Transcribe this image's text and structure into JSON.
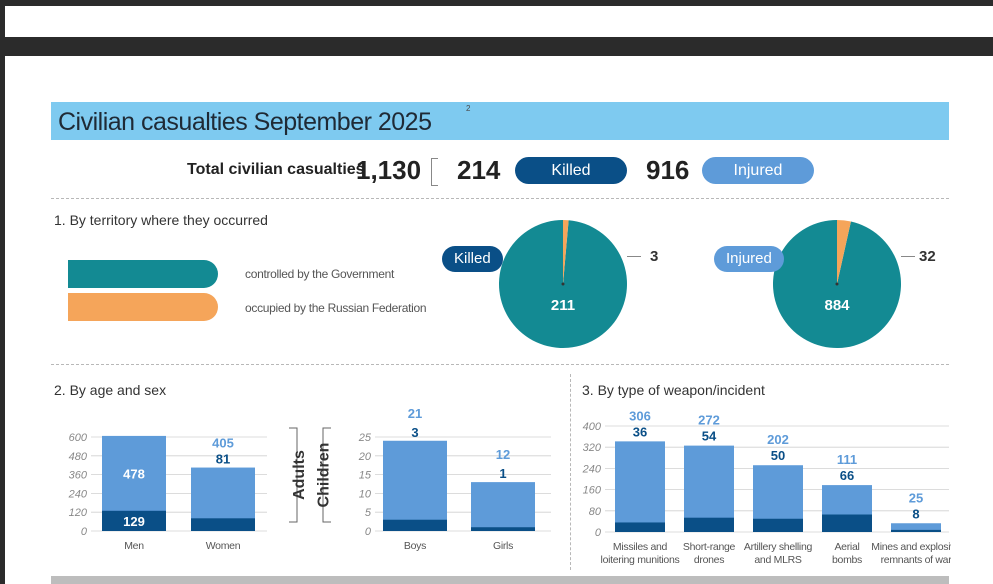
{
  "header": {
    "title": "Civilian casualties September 2025",
    "title_footnote": "2"
  },
  "totals": {
    "label": "Total civilian casualties",
    "total": "1,130",
    "killed": "214",
    "killed_label": "Killed",
    "injured": "916",
    "injured_label": "Injured"
  },
  "section1": {
    "title": "1. By territory where they occurred",
    "legend": [
      {
        "label": "controlled by the Government",
        "color": "#138a93"
      },
      {
        "label": "occupied by the Russian Federation",
        "color": "#f5a55a"
      }
    ]
  },
  "section2": {
    "title": "2. By age and sex",
    "adults_label": "Adults",
    "children_label": "Children"
  },
  "section3": {
    "title": "3. By type of weapon/incident"
  },
  "colors": {
    "killed": "#0a4f87",
    "injured": "#5e9bd9",
    "teal": "#138a93",
    "orange": "#f5a55a"
  },
  "chart_data": [
    {
      "id": "pie-killed",
      "type": "pie",
      "title": "Killed",
      "labels": [
        "controlled by the Government",
        "occupied by the Russian Federation"
      ],
      "values": [
        211,
        3
      ]
    },
    {
      "id": "pie-injured",
      "type": "pie",
      "title": "Injured",
      "labels": [
        "controlled by the Government",
        "occupied by the Russian Federation"
      ],
      "values": [
        884,
        32
      ]
    },
    {
      "id": "adults",
      "type": "bar",
      "stacked": true,
      "categories": [
        "Men",
        "Women"
      ],
      "series": [
        {
          "name": "Killed",
          "values": [
            129,
            81
          ]
        },
        {
          "name": "Injured",
          "values": [
            478,
            324
          ]
        }
      ],
      "totals": [
        607,
        405
      ],
      "label_injured": [
        "478",
        ""
      ],
      "label_killed": [
        "129",
        "81"
      ],
      "label_total": [
        "",
        "405"
      ],
      "ylim": [
        0,
        600
      ],
      "yticks": [
        0,
        120,
        240,
        360,
        480,
        600
      ]
    },
    {
      "id": "children",
      "type": "bar",
      "stacked": true,
      "categories": [
        "Boys",
        "Girls"
      ],
      "series": [
        {
          "name": "Killed",
          "values": [
            3,
            1
          ]
        },
        {
          "name": "Injured",
          "values": [
            21,
            12
          ]
        }
      ],
      "totals": [
        24,
        13
      ],
      "label_total": [
        "21",
        "12"
      ],
      "label_killed": [
        "3",
        "1"
      ],
      "ylim": [
        0,
        25
      ],
      "yticks": [
        0,
        5,
        10,
        15,
        20,
        25
      ]
    },
    {
      "id": "weapons",
      "type": "bar",
      "stacked": true,
      "categories": [
        "Missiles and loitering munitions",
        "Short-range drones",
        "Artillery shelling and MLRS",
        "Aerial bombs",
        "Mines and explosive remnants of war"
      ],
      "category_lines": [
        [
          "Missiles and",
          "loitering munitions"
        ],
        [
          "Short-range",
          "drones"
        ],
        [
          "Artillery shelling",
          "and MLRS"
        ],
        [
          "Aerial",
          "bombs"
        ],
        [
          "Mines and explosive",
          "remnants of war"
        ]
      ],
      "series": [
        {
          "name": "Killed",
          "values": [
            36,
            54,
            50,
            66,
            8
          ]
        },
        {
          "name": "Injured",
          "values": [
            306,
            272,
            202,
            111,
            25
          ]
        }
      ],
      "label_injured": [
        "306",
        "272",
        "202",
        "111",
        "25"
      ],
      "label_killed": [
        "36",
        "54",
        "50",
        "66",
        "8"
      ],
      "ylim": [
        0,
        400
      ],
      "yticks": [
        0,
        80,
        160,
        240,
        320,
        400
      ]
    }
  ]
}
